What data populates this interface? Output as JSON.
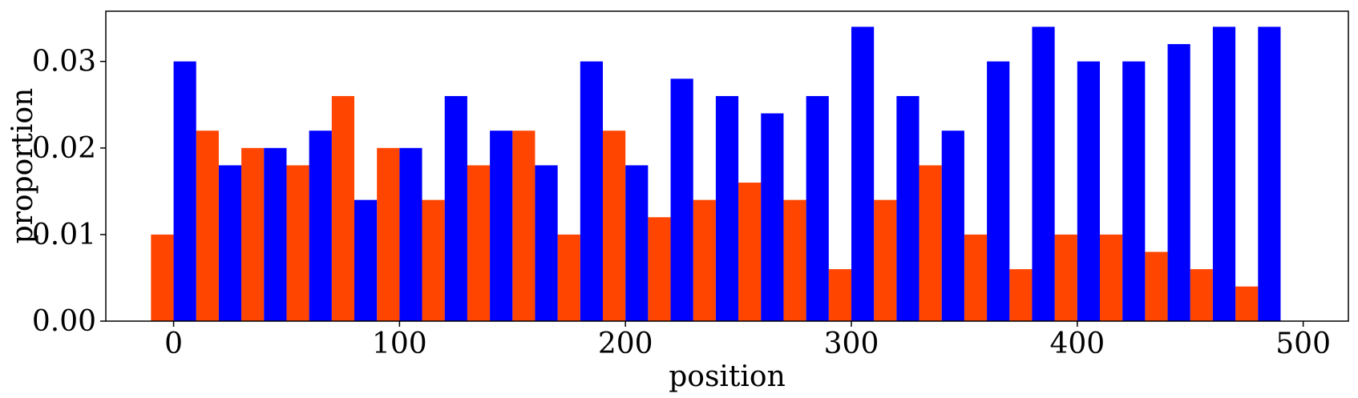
{
  "chart_data": {
    "type": "bar",
    "xlabel": "position",
    "ylabel": "proportion",
    "xlim": [
      -30,
      520
    ],
    "ylim": [
      0,
      0.0358
    ],
    "bin_width": 20,
    "x_ticks": [
      0,
      100,
      200,
      300,
      400,
      500
    ],
    "x_tick_labels": [
      "0",
      "100",
      "200",
      "300",
      "400",
      "500"
    ],
    "y_ticks": [
      0,
      0.01,
      0.02,
      0.03
    ],
    "y_tick_labels": [
      "0.00",
      "0.01",
      "0.02",
      "0.03"
    ],
    "grid": false,
    "x": [
      0,
      20,
      40,
      60,
      80,
      100,
      120,
      140,
      160,
      180,
      200,
      220,
      240,
      260,
      280,
      300,
      320,
      340,
      360,
      380,
      400,
      420,
      440,
      460,
      480
    ],
    "series": [
      {
        "color": "#ff4500",
        "values": [
          0.01,
          0.022,
          0.02,
          0.018,
          0.026,
          0.02,
          0.014,
          0.018,
          0.022,
          0.01,
          0.022,
          0.012,
          0.014,
          0.016,
          0.014,
          0.006,
          0.014,
          0.018,
          0.01,
          0.006,
          0.01,
          0.01,
          0.008,
          0.006,
          0.004
        ]
      },
      {
        "color": "#0000ff",
        "values": [
          0.03,
          0.018,
          0.02,
          0.022,
          0.014,
          0.02,
          0.026,
          0.022,
          0.018,
          0.03,
          0.018,
          0.028,
          0.026,
          0.024,
          0.026,
          0.034,
          0.026,
          0.022,
          0.03,
          0.034,
          0.03,
          0.03,
          0.032,
          0.034,
          0.034
        ]
      }
    ]
  }
}
